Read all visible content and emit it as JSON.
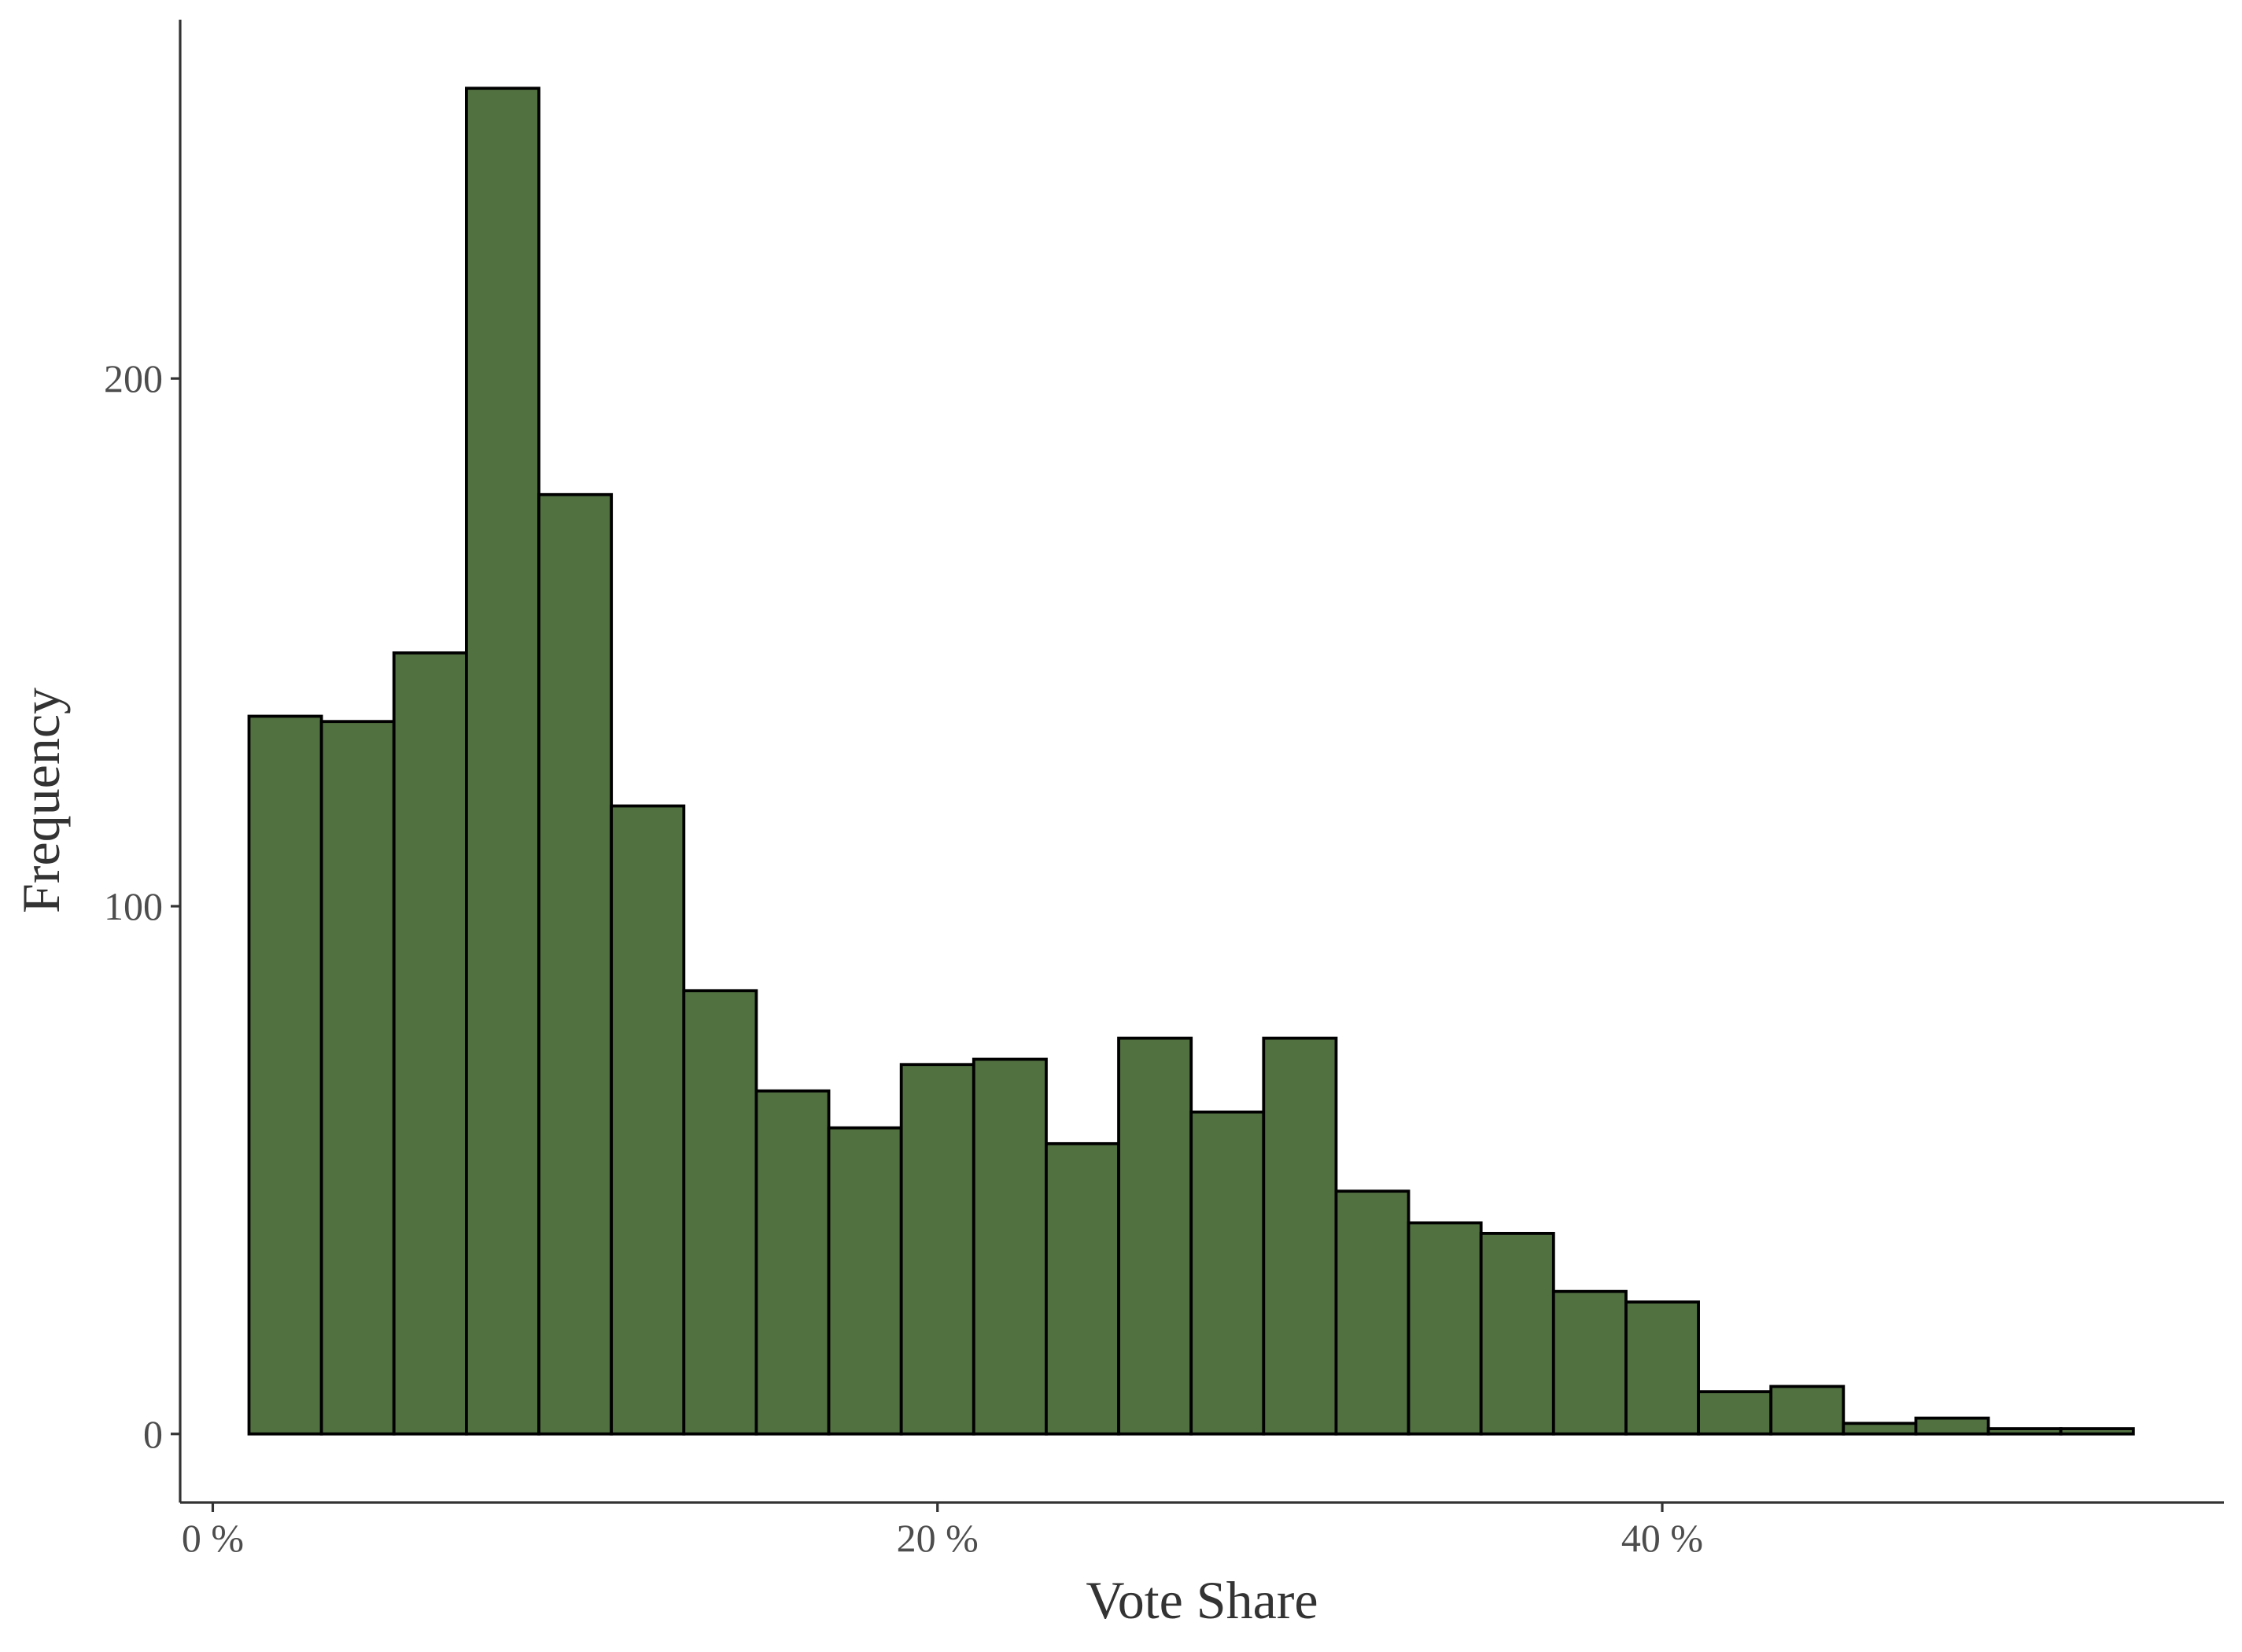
{
  "chart_data": {
    "type": "bar",
    "title": "",
    "xlabel": "Vote Share",
    "ylabel": "Frequency",
    "bar_color": "#527141",
    "bar_outline_color": "#000000",
    "grid": false,
    "legend": "none",
    "xlim": [
      -0.9,
      55.5
    ],
    "ylim": [
      -13,
      268
    ],
    "x_ticks": [
      {
        "value": 0,
        "label": "0 %"
      },
      {
        "value": 20,
        "label": "20 %"
      },
      {
        "value": 40,
        "label": "40 %"
      }
    ],
    "y_ticks": [
      {
        "value": 0,
        "label": "0"
      },
      {
        "value": 100,
        "label": "100"
      },
      {
        "value": 200,
        "label": "200"
      }
    ],
    "bins": [
      {
        "x0": 1.0,
        "x1": 3.0,
        "count": 136
      },
      {
        "x0": 3.0,
        "x1": 5.0,
        "count": 135
      },
      {
        "x0": 5.0,
        "x1": 7.0,
        "count": 148
      },
      {
        "x0": 7.0,
        "x1": 9.0,
        "count": 255
      },
      {
        "x0": 9.0,
        "x1": 11.0,
        "count": 178
      },
      {
        "x0": 11.0,
        "x1": 13.0,
        "count": 119
      },
      {
        "x0": 13.0,
        "x1": 15.0,
        "count": 84
      },
      {
        "x0": 15.0,
        "x1": 17.0,
        "count": 65
      },
      {
        "x0": 17.0,
        "x1": 19.0,
        "count": 58
      },
      {
        "x0": 19.0,
        "x1": 21.0,
        "count": 70
      },
      {
        "x0": 21.0,
        "x1": 23.0,
        "count": 71
      },
      {
        "x0": 23.0,
        "x1": 25.0,
        "count": 55
      },
      {
        "x0": 25.0,
        "x1": 27.0,
        "count": 75
      },
      {
        "x0": 27.0,
        "x1": 29.0,
        "count": 61
      },
      {
        "x0": 29.0,
        "x1": 31.0,
        "count": 75
      },
      {
        "x0": 31.0,
        "x1": 33.0,
        "count": 46
      },
      {
        "x0": 33.0,
        "x1": 35.0,
        "count": 40
      },
      {
        "x0": 35.0,
        "x1": 37.0,
        "count": 38
      },
      {
        "x0": 37.0,
        "x1": 39.0,
        "count": 27
      },
      {
        "x0": 39.0,
        "x1": 41.0,
        "count": 25
      },
      {
        "x0": 41.0,
        "x1": 43.0,
        "count": 8
      },
      {
        "x0": 43.0,
        "x1": 45.0,
        "count": 9
      },
      {
        "x0": 45.0,
        "x1": 47.0,
        "count": 2
      },
      {
        "x0": 47.0,
        "x1": 49.0,
        "count": 3
      },
      {
        "x0": 49.0,
        "x1": 51.0,
        "count": 1
      },
      {
        "x0": 51.0,
        "x1": 53.0,
        "count": 1
      }
    ]
  }
}
